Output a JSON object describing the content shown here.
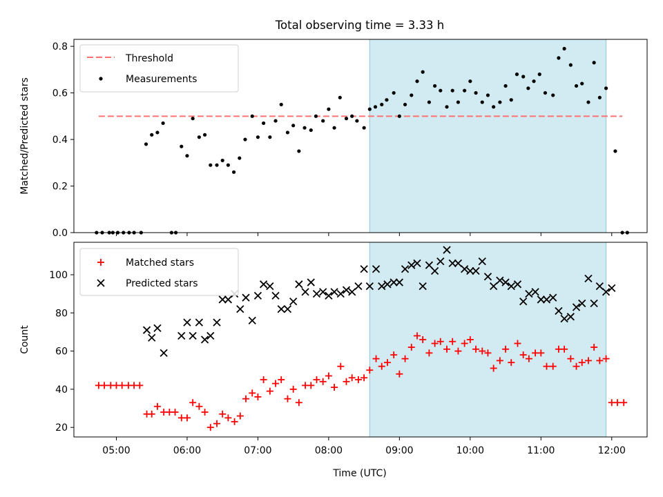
{
  "title": "Total observing time = 3.33 h",
  "chart_data": {
    "type": "scatter",
    "x_unit": "hour of day (UTC)",
    "xlabel": "Time (UTC)",
    "xlim": [
      4.4,
      12.5
    ],
    "xticks": [
      5,
      6,
      7,
      8,
      9,
      10,
      11,
      12
    ],
    "xtick_labels": [
      "05:00",
      "06:00",
      "07:00",
      "08:00",
      "09:00",
      "10:00",
      "11:00",
      "12:00"
    ],
    "shaded_span": [
      8.58,
      11.92
    ],
    "shade_color": "#add8e6",
    "top": {
      "ylabel": "Matched/Predicted stars",
      "ylim": [
        0,
        0.83
      ],
      "yticks": [
        0,
        0.2,
        0.4,
        0.6,
        0.8
      ],
      "ytick_labels": [
        "0.0",
        "0.2",
        "0.4",
        "0.6",
        "0.8"
      ],
      "threshold": {
        "name": "Threshold",
        "y": 0.5,
        "x_range": [
          4.75,
          12.15
        ],
        "color": "#ff7070"
      },
      "legend": "upper left",
      "series": [
        {
          "name": "Measurements",
          "color": "#000000",
          "marker": "dot",
          "points": [
            [
              4.72,
              0.0
            ],
            [
              4.8,
              0.0
            ],
            [
              4.9,
              0.0
            ],
            [
              4.95,
              0.0
            ],
            [
              5.02,
              0.0
            ],
            [
              5.1,
              0.0
            ],
            [
              5.18,
              0.0
            ],
            [
              5.25,
              0.0
            ],
            [
              5.35,
              0.0
            ],
            [
              5.42,
              0.38
            ],
            [
              5.5,
              0.42
            ],
            [
              5.58,
              0.43
            ],
            [
              5.66,
              0.47
            ],
            [
              5.78,
              0.0
            ],
            [
              5.84,
              0.0
            ],
            [
              5.92,
              0.37
            ],
            [
              6.0,
              0.33
            ],
            [
              6.08,
              0.49
            ],
            [
              6.17,
              0.41
            ],
            [
              6.25,
              0.42
            ],
            [
              6.33,
              0.29
            ],
            [
              6.42,
              0.29
            ],
            [
              6.5,
              0.31
            ],
            [
              6.58,
              0.29
            ],
            [
              6.66,
              0.26
            ],
            [
              6.74,
              0.32
            ],
            [
              6.82,
              0.4
            ],
            [
              6.92,
              0.5
            ],
            [
              7.0,
              0.41
            ],
            [
              7.08,
              0.47
            ],
            [
              7.17,
              0.41
            ],
            [
              7.25,
              0.48
            ],
            [
              7.33,
              0.55
            ],
            [
              7.42,
              0.43
            ],
            [
              7.5,
              0.46
            ],
            [
              7.58,
              0.35
            ],
            [
              7.66,
              0.45
            ],
            [
              7.75,
              0.44
            ],
            [
              7.82,
              0.5
            ],
            [
              7.92,
              0.48
            ],
            [
              8.0,
              0.53
            ],
            [
              8.08,
              0.45
            ],
            [
              8.16,
              0.58
            ],
            [
              8.25,
              0.49
            ],
            [
              8.33,
              0.5
            ],
            [
              8.4,
              0.48
            ],
            [
              8.5,
              0.45
            ],
            [
              8.58,
              0.53
            ],
            [
              8.66,
              0.54
            ],
            [
              8.75,
              0.55
            ],
            [
              8.82,
              0.57
            ],
            [
              8.92,
              0.6
            ],
            [
              9.0,
              0.5
            ],
            [
              9.08,
              0.55
            ],
            [
              9.17,
              0.59
            ],
            [
              9.25,
              0.65
            ],
            [
              9.33,
              0.69
            ],
            [
              9.42,
              0.56
            ],
            [
              9.5,
              0.63
            ],
            [
              9.58,
              0.61
            ],
            [
              9.67,
              0.54
            ],
            [
              9.75,
              0.61
            ],
            [
              9.83,
              0.56
            ],
            [
              9.92,
              0.61
            ],
            [
              10.0,
              0.65
            ],
            [
              10.08,
              0.6
            ],
            [
              10.17,
              0.56
            ],
            [
              10.25,
              0.59
            ],
            [
              10.33,
              0.54
            ],
            [
              10.42,
              0.56
            ],
            [
              10.5,
              0.63
            ],
            [
              10.58,
              0.57
            ],
            [
              10.66,
              0.68
            ],
            [
              10.75,
              0.67
            ],
            [
              10.82,
              0.62
            ],
            [
              10.9,
              0.65
            ],
            [
              10.98,
              0.68
            ],
            [
              11.06,
              0.6
            ],
            [
              11.17,
              0.59
            ],
            [
              11.25,
              0.75
            ],
            [
              11.33,
              0.79
            ],
            [
              11.42,
              0.72
            ],
            [
              11.5,
              0.63
            ],
            [
              11.58,
              0.64
            ],
            [
              11.67,
              0.56
            ],
            [
              11.75,
              0.73
            ],
            [
              11.83,
              0.58
            ],
            [
              11.92,
              0.62
            ],
            [
              12.05,
              0.35
            ],
            [
              12.15,
              0.0
            ],
            [
              12.22,
              0.0
            ]
          ]
        }
      ]
    },
    "bottom": {
      "ylabel": "Count",
      "ylim": [
        15,
        117
      ],
      "yticks": [
        20,
        40,
        60,
        80,
        100
      ],
      "ytick_labels": [
        "20",
        "40",
        "60",
        "80",
        "100"
      ],
      "legend": "upper left",
      "series": [
        {
          "name": "Matched stars",
          "color": "#ff0000",
          "marker": "plus",
          "points": [
            [
              4.75,
              42
            ],
            [
              4.83,
              42
            ],
            [
              4.92,
              42
            ],
            [
              5.0,
              42
            ],
            [
              5.08,
              42
            ],
            [
              5.17,
              42
            ],
            [
              5.25,
              42
            ],
            [
              5.33,
              42
            ],
            [
              5.43,
              27
            ],
            [
              5.5,
              27
            ],
            [
              5.58,
              31
            ],
            [
              5.67,
              28
            ],
            [
              5.75,
              28
            ],
            [
              5.83,
              28
            ],
            [
              5.92,
              25
            ],
            [
              6.0,
              25
            ],
            [
              6.08,
              33
            ],
            [
              6.17,
              31
            ],
            [
              6.25,
              28
            ],
            [
              6.33,
              20
            ],
            [
              6.42,
              22
            ],
            [
              6.5,
              27
            ],
            [
              6.58,
              25
            ],
            [
              6.67,
              23
            ],
            [
              6.75,
              26
            ],
            [
              6.83,
              35
            ],
            [
              6.92,
              38
            ],
            [
              7.0,
              36
            ],
            [
              7.08,
              45
            ],
            [
              7.17,
              39
            ],
            [
              7.25,
              43
            ],
            [
              7.33,
              45
            ],
            [
              7.42,
              35
            ],
            [
              7.5,
              40
            ],
            [
              7.58,
              33
            ],
            [
              7.67,
              42
            ],
            [
              7.75,
              42
            ],
            [
              7.83,
              45
            ],
            [
              7.92,
              44
            ],
            [
              8.0,
              47
            ],
            [
              8.08,
              41
            ],
            [
              8.17,
              52
            ],
            [
              8.25,
              44
            ],
            [
              8.33,
              46
            ],
            [
              8.42,
              45
            ],
            [
              8.5,
              46
            ],
            [
              8.58,
              50
            ],
            [
              8.67,
              56
            ],
            [
              8.75,
              52
            ],
            [
              8.83,
              54
            ],
            [
              8.92,
              58
            ],
            [
              9.0,
              48
            ],
            [
              9.08,
              56
            ],
            [
              9.17,
              62
            ],
            [
              9.25,
              68
            ],
            [
              9.33,
              66
            ],
            [
              9.42,
              59
            ],
            [
              9.5,
              64
            ],
            [
              9.58,
              65
            ],
            [
              9.67,
              61
            ],
            [
              9.75,
              65
            ],
            [
              9.83,
              60
            ],
            [
              9.92,
              64
            ],
            [
              10.0,
              66
            ],
            [
              10.08,
              61
            ],
            [
              10.17,
              60
            ],
            [
              10.25,
              59
            ],
            [
              10.33,
              51
            ],
            [
              10.42,
              55
            ],
            [
              10.5,
              61
            ],
            [
              10.58,
              54
            ],
            [
              10.67,
              64
            ],
            [
              10.75,
              58
            ],
            [
              10.83,
              56
            ],
            [
              10.92,
              59
            ],
            [
              11.0,
              59
            ],
            [
              11.08,
              52
            ],
            [
              11.17,
              52
            ],
            [
              11.25,
              61
            ],
            [
              11.33,
              61
            ],
            [
              11.42,
              56
            ],
            [
              11.5,
              52
            ],
            [
              11.58,
              54
            ],
            [
              11.67,
              55
            ],
            [
              11.75,
              62
            ],
            [
              11.83,
              55
            ],
            [
              11.92,
              56
            ],
            [
              12.0,
              33
            ],
            [
              12.08,
              33
            ],
            [
              12.17,
              33
            ]
          ]
        },
        {
          "name": "Predicted stars",
          "color": "#000000",
          "marker": "x",
          "points": [
            [
              5.43,
              71
            ],
            [
              5.5,
              67
            ],
            [
              5.58,
              72
            ],
            [
              5.67,
              59
            ],
            [
              5.92,
              68
            ],
            [
              6.0,
              75
            ],
            [
              6.08,
              68
            ],
            [
              6.17,
              75
            ],
            [
              6.25,
              66
            ],
            [
              6.33,
              68
            ],
            [
              6.42,
              75
            ],
            [
              6.5,
              87
            ],
            [
              6.58,
              87
            ],
            [
              6.67,
              90
            ],
            [
              6.75,
              82
            ],
            [
              6.83,
              88
            ],
            [
              6.92,
              76
            ],
            [
              7.0,
              89
            ],
            [
              7.08,
              95
            ],
            [
              7.17,
              94
            ],
            [
              7.25,
              89
            ],
            [
              7.33,
              82
            ],
            [
              7.42,
              82
            ],
            [
              7.5,
              86
            ],
            [
              7.58,
              95
            ],
            [
              7.67,
              91
            ],
            [
              7.75,
              96
            ],
            [
              7.83,
              90
            ],
            [
              7.92,
              91
            ],
            [
              8.0,
              89
            ],
            [
              8.08,
              91
            ],
            [
              8.17,
              90
            ],
            [
              8.25,
              92
            ],
            [
              8.33,
              91
            ],
            [
              8.42,
              94
            ],
            [
              8.5,
              103
            ],
            [
              8.58,
              94
            ],
            [
              8.67,
              103
            ],
            [
              8.75,
              94
            ],
            [
              8.83,
              95
            ],
            [
              8.92,
              96
            ],
            [
              9.0,
              96
            ],
            [
              9.08,
              103
            ],
            [
              9.17,
              105
            ],
            [
              9.25,
              106
            ],
            [
              9.33,
              94
            ],
            [
              9.42,
              105
            ],
            [
              9.5,
              102
            ],
            [
              9.58,
              107
            ],
            [
              9.67,
              113
            ],
            [
              9.75,
              106
            ],
            [
              9.83,
              106
            ],
            [
              9.92,
              103
            ],
            [
              10.0,
              102
            ],
            [
              10.08,
              102
            ],
            [
              10.17,
              107
            ],
            [
              10.25,
              99
            ],
            [
              10.33,
              94
            ],
            [
              10.42,
              97
            ],
            [
              10.5,
              96
            ],
            [
              10.58,
              94
            ],
            [
              10.67,
              95
            ],
            [
              10.75,
              86
            ],
            [
              10.83,
              90
            ],
            [
              10.92,
              91
            ],
            [
              11.0,
              87
            ],
            [
              11.08,
              87
            ],
            [
              11.17,
              88
            ],
            [
              11.25,
              81
            ],
            [
              11.33,
              77
            ],
            [
              11.42,
              78
            ],
            [
              11.5,
              83
            ],
            [
              11.58,
              85
            ],
            [
              11.67,
              98
            ],
            [
              11.75,
              85
            ],
            [
              11.83,
              94
            ],
            [
              11.92,
              91
            ],
            [
              12.0,
              93
            ]
          ]
        }
      ]
    }
  }
}
